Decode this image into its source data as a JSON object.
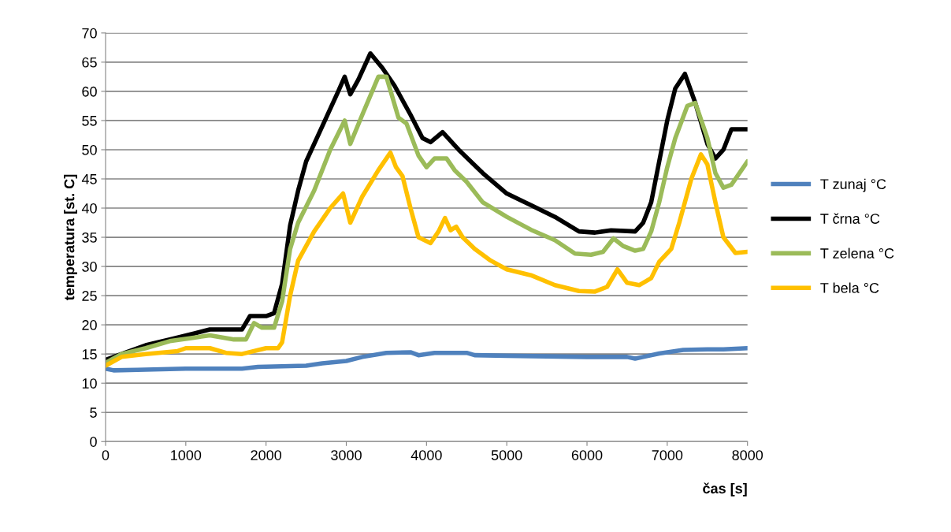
{
  "chart_data": {
    "type": "line",
    "xlabel": "čas [s]",
    "ylabel": "temperatura [st. C]",
    "xlim": [
      0,
      8000
    ],
    "xticks": [
      0,
      1000,
      2000,
      3000,
      4000,
      5000,
      6000,
      7000,
      8000
    ],
    "ylim": [
      0,
      70
    ],
    "yticks": [
      0,
      5,
      10,
      15,
      20,
      25,
      30,
      35,
      40,
      45,
      50,
      55,
      60,
      65,
      70
    ],
    "grid": "y",
    "legend": "right",
    "marker": "none",
    "line_style": "solid",
    "series": [
      {
        "name": "T zunaj °C",
        "color": "#4f81bd",
        "x": [
          0,
          100,
          400,
          1000,
          1700,
          1900,
          2500,
          2700,
          3000,
          3200,
          3500,
          3800,
          3900,
          4100,
          4500,
          4600,
          5000,
          5500,
          6000,
          6500,
          6600,
          6700,
          6900,
          7200,
          7500,
          7700,
          8000
        ],
        "values": [
          12.5,
          12.2,
          12.3,
          12.5,
          12.5,
          12.8,
          13,
          13.4,
          13.8,
          14.5,
          15.2,
          15.3,
          14.8,
          15.2,
          15.2,
          14.8,
          14.7,
          14.6,
          14.5,
          14.5,
          14.2,
          14.5,
          15.1,
          15.7,
          15.8,
          15.8,
          16
        ]
      },
      {
        "name": "T črna °C",
        "color": "#000000",
        "x": [
          0,
          200,
          500,
          800,
          1100,
          1300,
          1700,
          1800,
          2000,
          2100,
          2200,
          2300,
          2400,
          2500,
          2700,
          2900,
          2980,
          3050,
          3150,
          3300,
          3450,
          3600,
          3800,
          3950,
          4050,
          4200,
          4400,
          4700,
          5000,
          5300,
          5600,
          5900,
          6100,
          6300,
          6600,
          6700,
          6800,
          6900,
          7000,
          7100,
          7220,
          7350,
          7500,
          7600,
          7700,
          7800,
          8000
        ],
        "values": [
          14,
          15,
          16.5,
          17.5,
          18.5,
          19.2,
          19.2,
          21.5,
          21.5,
          22,
          27,
          37,
          43,
          48,
          54,
          60,
          62.5,
          59.5,
          62,
          66.5,
          64,
          61,
          56,
          52,
          51.3,
          53,
          50,
          46,
          42.5,
          40.5,
          38.5,
          36,
          35.8,
          36.2,
          36,
          37.5,
          41,
          48,
          55,
          60.5,
          63,
          58,
          51,
          48.5,
          50,
          53.5,
          53.5
        ]
      },
      {
        "name": "T zelena °C",
        "color": "#9bbb59",
        "x": [
          0,
          200,
          500,
          800,
          1100,
          1300,
          1600,
          1750,
          1850,
          1950,
          2100,
          2200,
          2300,
          2400,
          2600,
          2800,
          2980,
          3050,
          3200,
          3400,
          3500,
          3650,
          3750,
          3900,
          4000,
          4100,
          4250,
          4350,
          4500,
          4700,
          5000,
          5300,
          5600,
          5850,
          6050,
          6200,
          6330,
          6450,
          6600,
          6700,
          6800,
          6900,
          7000,
          7100,
          7250,
          7350,
          7500,
          7600,
          7700,
          7800,
          8000
        ],
        "values": [
          13.5,
          15,
          16,
          17.2,
          17.8,
          18.2,
          17.5,
          17.5,
          20.3,
          19.5,
          19.5,
          24,
          33,
          37.5,
          43,
          50,
          55,
          51,
          56,
          62.5,
          62.5,
          55.5,
          54.5,
          49,
          47,
          48.5,
          48.5,
          46.5,
          44.5,
          41,
          38.5,
          36.3,
          34.5,
          32.2,
          32,
          32.5,
          34.8,
          33.5,
          32.7,
          33,
          36,
          41,
          47,
          52,
          57.5,
          58,
          52,
          46,
          43.5,
          44,
          48
        ]
      },
      {
        "name": "T bela °C",
        "color": "#ffc000",
        "x": [
          0,
          200,
          500,
          900,
          1000,
          1300,
          1500,
          1700,
          2000,
          2150,
          2200,
          2300,
          2400,
          2600,
          2800,
          2960,
          3050,
          3200,
          3400,
          3550,
          3620,
          3700,
          3800,
          3900,
          4050,
          4150,
          4230,
          4300,
          4370,
          4450,
          4600,
          4800,
          5000,
          5300,
          5600,
          5900,
          6100,
          6250,
          6380,
          6500,
          6650,
          6800,
          6900,
          7050,
          7150,
          7300,
          7420,
          7500,
          7600,
          7700,
          7850,
          8000
        ],
        "values": [
          13,
          14.5,
          15,
          15.5,
          16,
          16,
          15.2,
          15,
          16,
          16,
          17,
          25,
          31,
          36,
          40,
          42.5,
          37.5,
          42,
          46.5,
          49.5,
          47,
          45.5,
          40,
          35,
          34,
          36,
          38.3,
          36.2,
          36.8,
          35,
          33,
          31,
          29.5,
          28.5,
          26.8,
          25.8,
          25.7,
          26.5,
          29.5,
          27.2,
          26.8,
          28,
          30.8,
          33,
          37.5,
          45,
          49.2,
          47.5,
          41,
          35,
          32.3,
          32.5
        ]
      }
    ]
  }
}
